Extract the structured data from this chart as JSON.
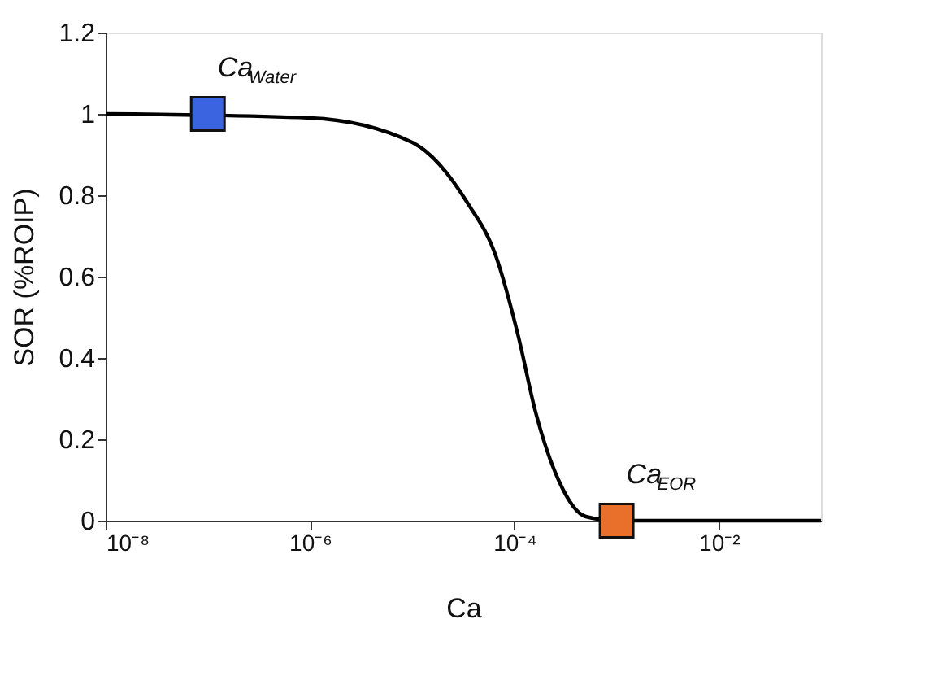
{
  "chart_data": {
    "type": "line",
    "xlabel": "Ca",
    "ylabel": "SOR (%ROIP)",
    "log": "x",
    "xlim": [
      1e-08,
      0.1
    ],
    "xticks": [
      {
        "value": 1e-08,
        "label": "10⁻⁸"
      },
      {
        "value": 1e-06,
        "label": "10⁻⁶"
      },
      {
        "value": 0.0001,
        "label": "10⁻⁴"
      },
      {
        "value": 0.01,
        "label": "10⁻²"
      }
    ],
    "ylim": [
      0,
      1.2
    ],
    "yticks": [
      0,
      0.2,
      0.4,
      0.6,
      0.8,
      1,
      1.2
    ],
    "grid": false,
    "series": [
      {
        "color": "#000000",
        "marker": "none",
        "line_style": "solid",
        "x": [
          1e-08,
          1e-07,
          1e-06,
          1e-05,
          3.5e-05,
          6.6e-05,
          0.00011,
          0.00016,
          0.00027,
          0.0005,
          0.001,
          0.01,
          0.1
        ],
        "values": [
          1,
          null,
          0.99,
          0.93,
          0.78,
          0.65,
          0.45,
          0.27,
          0.1,
          0.01,
          0,
          0,
          0
        ]
      },
      {
        "type": "scatter",
        "marker": "square",
        "x": [
          1e-07,
          0.001
        ],
        "values": [
          1,
          0
        ],
        "colors": [
          "#3b64e0",
          "#e8702a"
        ]
      }
    ],
    "annotations": [
      {
        "text": "Ca$_{Water}$",
        "x": 1e-07,
        "y": 1
      },
      {
        "text": "Ca$_{EOR}$",
        "x": 0.001,
        "y": 0
      }
    ]
  }
}
